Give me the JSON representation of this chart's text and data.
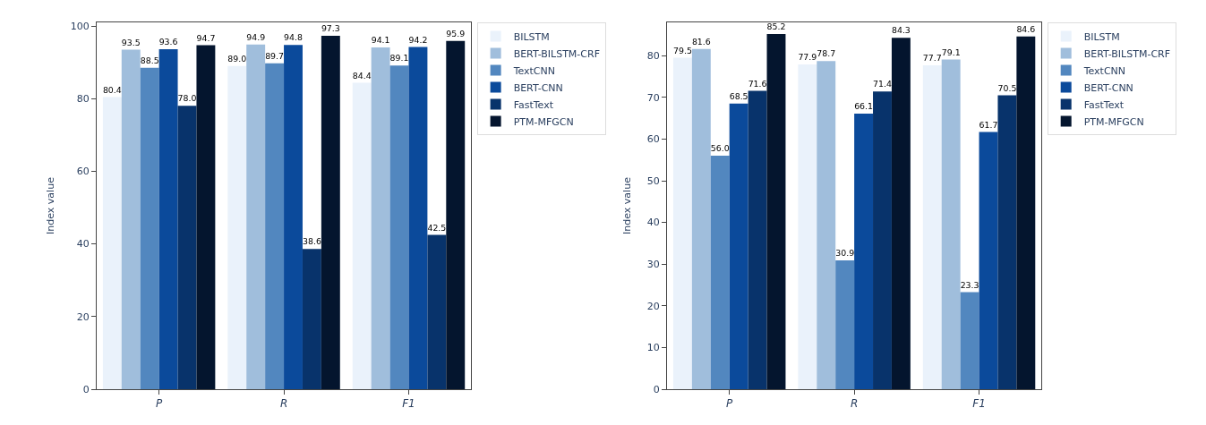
{
  "chart_data": [
    {
      "type": "bar",
      "ylabel": "Index value",
      "categories": [
        "P",
        "R",
        "F1"
      ],
      "ylim": [
        0,
        101
      ],
      "yticks": [
        0,
        20,
        40,
        60,
        80,
        100
      ],
      "legend": "top right",
      "series": [
        {
          "name": "BILSTM",
          "color": "#eaf2fb",
          "values": [
            80.4,
            89.0,
            84.4
          ],
          "value_labels": [
            "80.4",
            "89.0",
            "84.4"
          ]
        },
        {
          "name": "BERT-BILSTM-CRF",
          "color": "#a0bedc",
          "values": [
            93.5,
            94.9,
            94.1
          ],
          "value_labels": [
            "93.5",
            "94.9",
            "94.1"
          ]
        },
        {
          "name": "TextCNN",
          "color": "#5287bf",
          "values": [
            88.5,
            89.7,
            89.1
          ],
          "value_labels": [
            "88.5",
            "89.7",
            "89.1"
          ]
        },
        {
          "name": "BERT-CNN",
          "color": "#0b4a9b",
          "values": [
            93.6,
            94.8,
            94.2
          ],
          "value_labels": [
            "93.6",
            "94.8",
            "94.2"
          ]
        },
        {
          "name": "FastText",
          "color": "#08336b",
          "values": [
            78.0,
            38.6,
            42.5
          ],
          "value_labels": [
            "78.0",
            "38.6",
            "42.5"
          ]
        },
        {
          "name": "PTM-MFGCN",
          "color": "#04152e",
          "values": [
            94.7,
            97.3,
            95.9
          ],
          "value_labels": [
            "94.7",
            "97.3",
            "95.9"
          ]
        }
      ]
    },
    {
      "type": "bar",
      "ylabel": "Index value",
      "categories": [
        "P",
        "R",
        "F1"
      ],
      "ylim": [
        0,
        88
      ],
      "yticks": [
        0,
        10,
        20,
        30,
        40,
        50,
        60,
        70,
        80
      ],
      "legend": "top right",
      "series": [
        {
          "name": "BILSTM",
          "color": "#eaf2fb",
          "values": [
            79.5,
            77.9,
            77.7
          ],
          "value_labels": [
            "79.5",
            "77.9",
            "77.7"
          ]
        },
        {
          "name": "BERT-BILSTM-CRF",
          "color": "#a0bedc",
          "values": [
            81.6,
            78.7,
            79.1
          ],
          "value_labels": [
            "81.6",
            "78.7",
            "79.1"
          ]
        },
        {
          "name": "TextCNN",
          "color": "#5287bf",
          "values": [
            56.0,
            30.9,
            23.3
          ],
          "value_labels": [
            "56.0",
            "30.9",
            "23.3"
          ]
        },
        {
          "name": "BERT-CNN",
          "color": "#0b4a9b",
          "values": [
            68.5,
            66.1,
            61.7
          ],
          "value_labels": [
            "68.5",
            "66.1",
            "61.7"
          ]
        },
        {
          "name": "FastText",
          "color": "#08336b",
          "values": [
            71.6,
            71.4,
            70.5
          ],
          "value_labels": [
            "71.6",
            "71.4",
            "70.5"
          ]
        },
        {
          "name": "PTM-MFGCN",
          "color": "#04152e",
          "values": [
            85.2,
            84.3,
            84.6
          ],
          "value_labels": [
            "85.2",
            "84.3",
            "84.6"
          ]
        }
      ]
    }
  ]
}
